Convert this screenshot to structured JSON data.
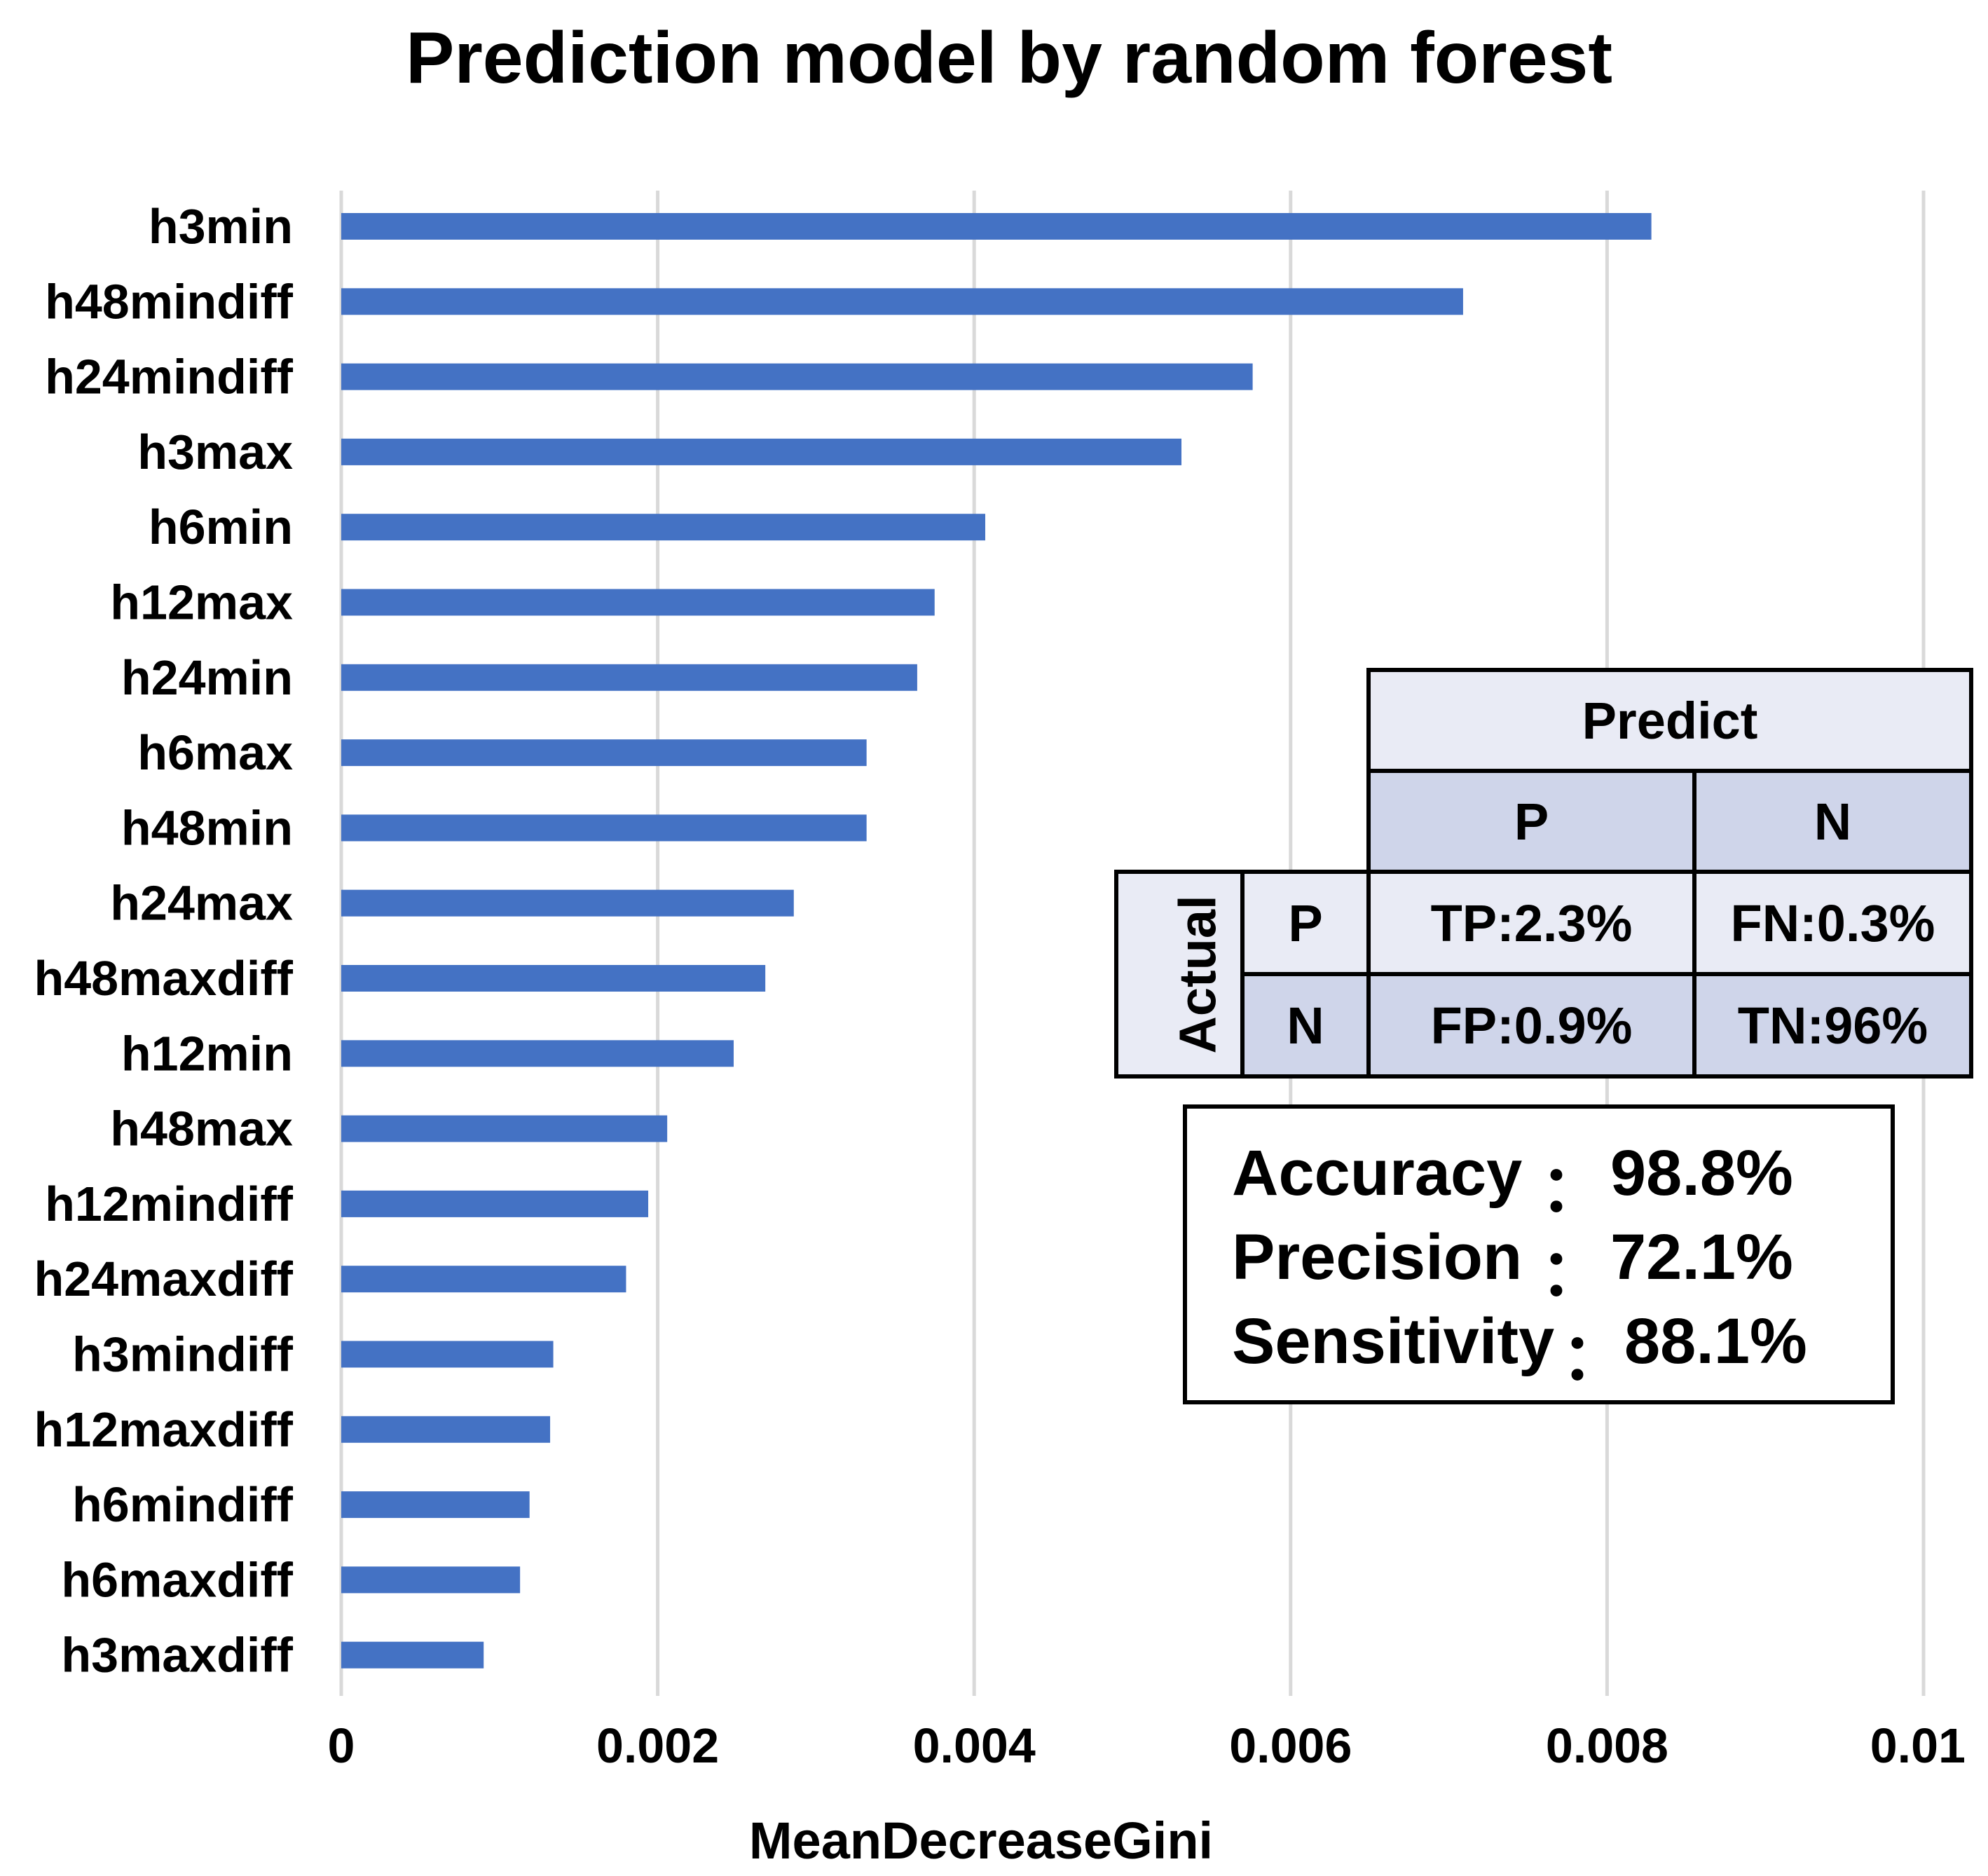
{
  "chart_data": {
    "type": "bar",
    "orientation": "horizontal",
    "title": "Prediction model by random forest",
    "xlabel": "MeanDecreaseGini",
    "ylabel": "",
    "xlim": [
      0,
      0.01
    ],
    "xticks": [
      "0",
      "0.002",
      "0.004",
      "0.006",
      "0.008",
      "0.01"
    ],
    "grid": "vertical",
    "bar_color": "#4472C4",
    "categories": [
      "h3min",
      "h48mindiff",
      "h24mindiff",
      "h3max",
      "h6min",
      "h12max",
      "h24min",
      "h6max",
      "h48min",
      "h24max",
      "h48maxdiff",
      "h12min",
      "h48max",
      "h12mindiff",
      "h24maxdiff",
      "h3mindiff",
      "h12maxdiff",
      "h6mindiff",
      "h6maxdiff",
      "h3maxdiff"
    ],
    "values": [
      0.00828,
      0.00709,
      0.00576,
      0.00531,
      0.00407,
      0.00375,
      0.00364,
      0.00332,
      0.00332,
      0.00286,
      0.00268,
      0.00248,
      0.00206,
      0.00194,
      0.0018,
      0.00134,
      0.00132,
      0.00119,
      0.00113,
      0.0009
    ]
  },
  "confusion_matrix": {
    "predict_label": "Predict",
    "actual_label": "Actual",
    "col_labels": [
      "P",
      "N"
    ],
    "row_labels": [
      "P",
      "N"
    ],
    "cells": [
      [
        "TP:2.3%",
        "FN:0.3%"
      ],
      [
        "FP:0.9%",
        "TN:96%"
      ]
    ],
    "header_color": "#E9EBF5",
    "accent_color": "#CFD5EA"
  },
  "metrics": [
    {
      "label": "Accuracy",
      "sep": "：",
      "value": "98.8%"
    },
    {
      "label": "Precision",
      "sep": "：",
      "value": "72.1%"
    },
    {
      "label": "Sensitivity",
      "sep": "：",
      "value": "88.1%"
    }
  ]
}
